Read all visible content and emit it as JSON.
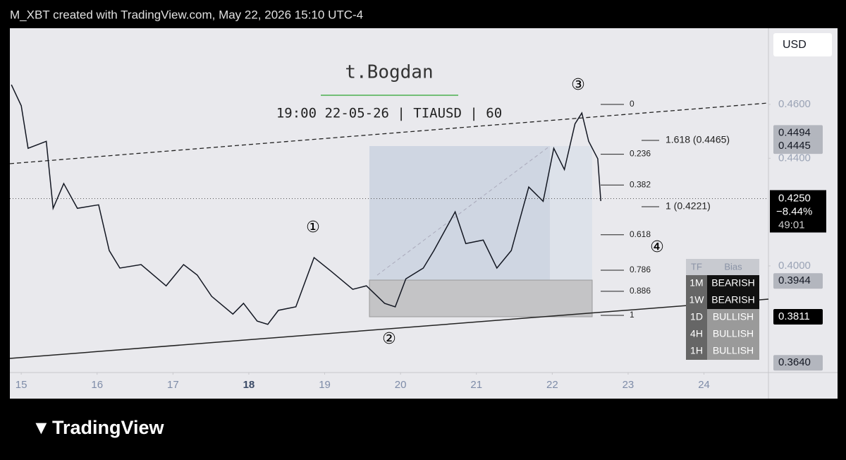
{
  "header": "M_XBT created with TradingView.com, May 22, 2026 15:10 UTC-4",
  "currency": "USD",
  "brand": "TradingView",
  "chart_data": {
    "type": "line",
    "title": "t.Bogdan",
    "subtitle": "19:00 22-05-26 | TIAUSD | 60",
    "x": [
      14.87,
      15.0,
      15.09,
      15.33,
      15.42,
      15.56,
      15.74,
      16.02,
      16.16,
      16.3,
      16.58,
      16.91,
      17.14,
      17.32,
      17.51,
      17.79,
      17.93,
      18.11,
      18.25,
      18.39,
      18.62,
      18.86,
      19.09,
      19.37,
      19.55,
      19.79,
      19.93,
      20.07,
      20.3,
      20.44,
      20.72,
      20.86,
      21.09,
      21.27,
      21.46,
      21.6,
      21.69,
      21.88,
      22.02,
      22.16,
      22.3,
      22.39,
      22.48,
      22.6,
      22.64
    ],
    "values": [
      0.4673,
      0.4595,
      0.4437,
      0.4463,
      0.4214,
      0.4306,
      0.4214,
      0.4227,
      0.4057,
      0.3992,
      0.4005,
      0.3926,
      0.4005,
      0.3966,
      0.3887,
      0.3821,
      0.3861,
      0.3795,
      0.3783,
      0.3835,
      0.3848,
      0.4031,
      0.3979,
      0.3913,
      0.3926,
      0.3861,
      0.3848,
      0.3952,
      0.3992,
      0.4057,
      0.4201,
      0.4083,
      0.4096,
      0.3992,
      0.4057,
      0.4201,
      0.4293,
      0.424,
      0.4437,
      0.4358,
      0.4528,
      0.4568,
      0.4463,
      0.4398,
      0.4241
    ],
    "color": "#131722",
    "xlim": [
      14.85,
      24.85
    ],
    "ylim": [
      0.3604,
      0.4883
    ],
    "xticks": [
      15,
      16,
      17,
      18,
      19,
      20,
      21,
      22,
      23,
      24
    ],
    "yticks": [
      {
        "value": 0.46,
        "label": "0.4600"
      },
      {
        "value": 0.44,
        "label": "0.4400"
      },
      {
        "value": 0.4,
        "label": "0.4000"
      }
    ],
    "price_labels": [
      {
        "value": 0.4494,
        "label": "0.4494",
        "style": "gray"
      },
      {
        "value": 0.4445,
        "label": "0.4445",
        "style": "gray"
      },
      {
        "value": 0.3944,
        "label": "0.3944",
        "style": "gray"
      },
      {
        "value": 0.3811,
        "label": "0.3811",
        "style": "black"
      },
      {
        "value": 0.364,
        "label": "0.3640",
        "style": "gray"
      }
    ],
    "current": {
      "value": 0.425,
      "label": "0.4250",
      "change": "−8.44%",
      "countdown": "49:01"
    },
    "fib_levels": [
      0,
      0.236,
      0.382,
      0.618,
      0.786,
      0.886,
      1
    ],
    "extensions": [
      "1.618 (0.4465)",
      "1 (0.4221)"
    ],
    "waves": [
      "①",
      "②",
      "③",
      "④"
    ],
    "bias_table": {
      "headers": [
        "TF",
        "Bias"
      ],
      "rows": [
        [
          "1M",
          "BEARISH"
        ],
        [
          "1W",
          "BEARISH"
        ],
        [
          "1D",
          "BULLISH"
        ],
        [
          "4H",
          "BULLISH"
        ],
        [
          "1H",
          "BULLISH"
        ]
      ]
    }
  }
}
